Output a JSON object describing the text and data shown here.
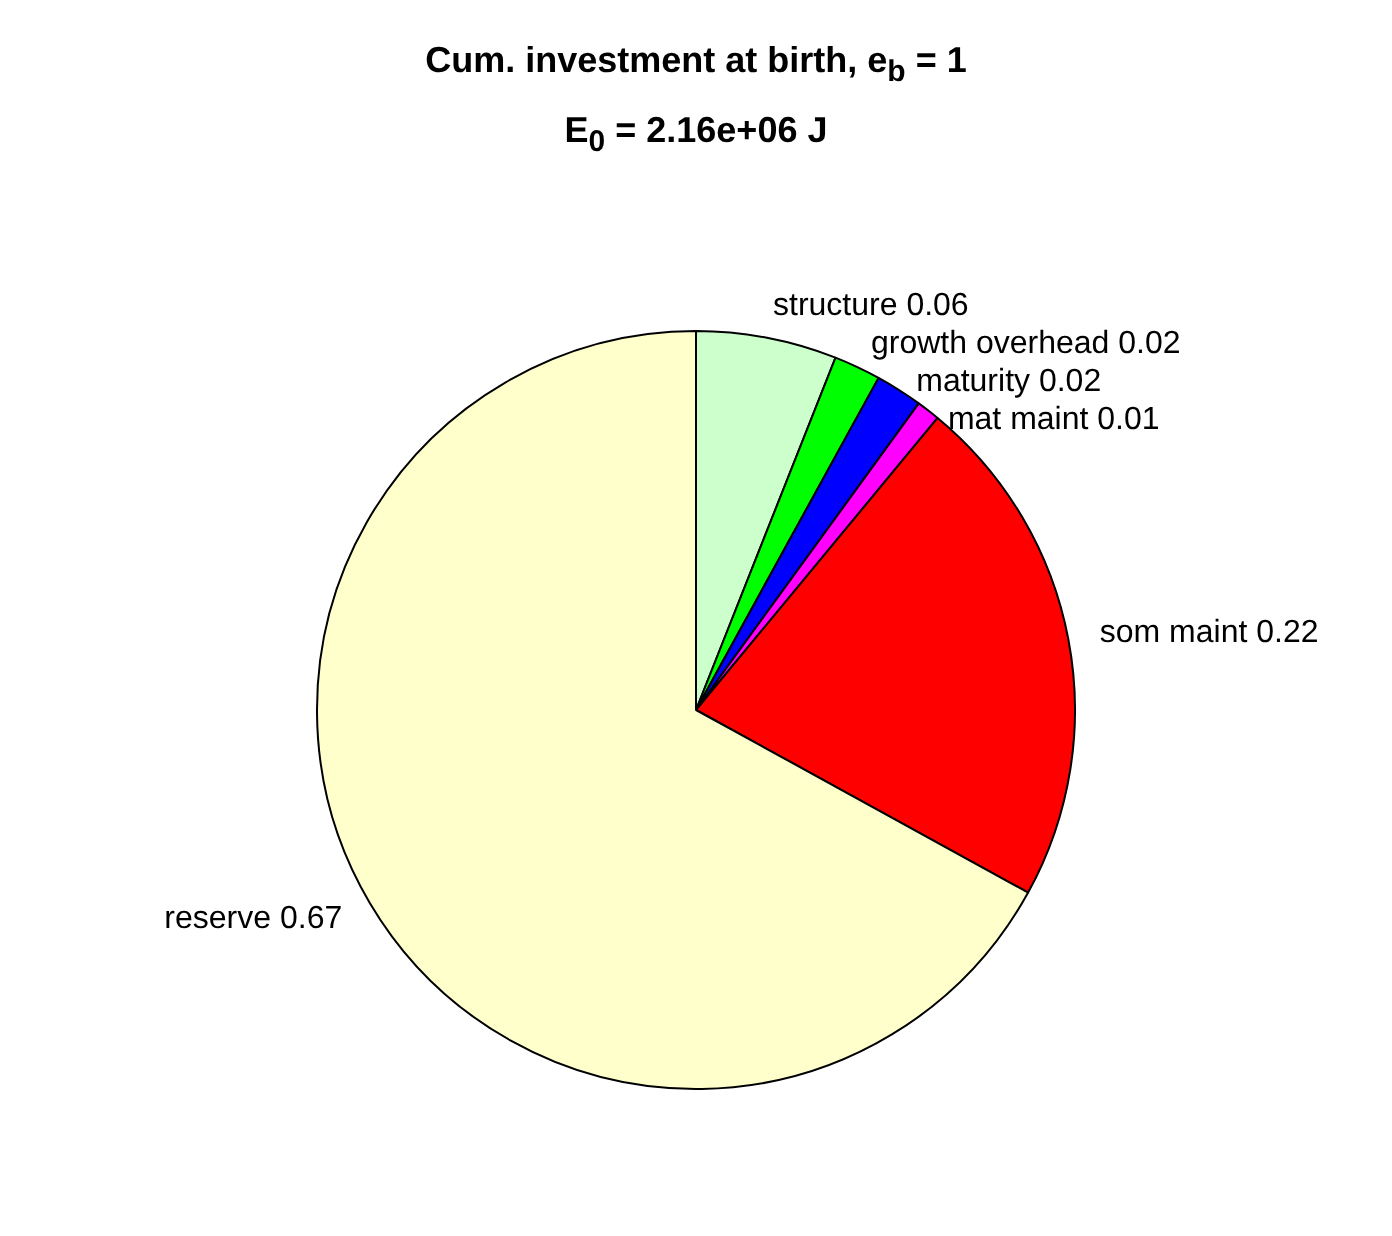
{
  "chart_data": {
    "type": "pie",
    "title": "Cum. investment at birth, e$_{b}$ = 1",
    "subtitle": "E$_{0}$ = 2.16e+06 J",
    "categories": [
      "structure 0.06",
      "growth overhead 0.02",
      "maturity 0.02",
      "mat maint 0.01",
      "som maint 0.22",
      "reserve 0.67"
    ],
    "values": [
      0.06,
      0.02,
      0.02,
      0.01,
      0.22,
      0.67
    ],
    "colors": [
      "#ccffcc",
      "#00ff00",
      "#0000ff",
      "#ff00ff",
      "#ff0000",
      "#ffffcc"
    ],
    "legend": false
  }
}
